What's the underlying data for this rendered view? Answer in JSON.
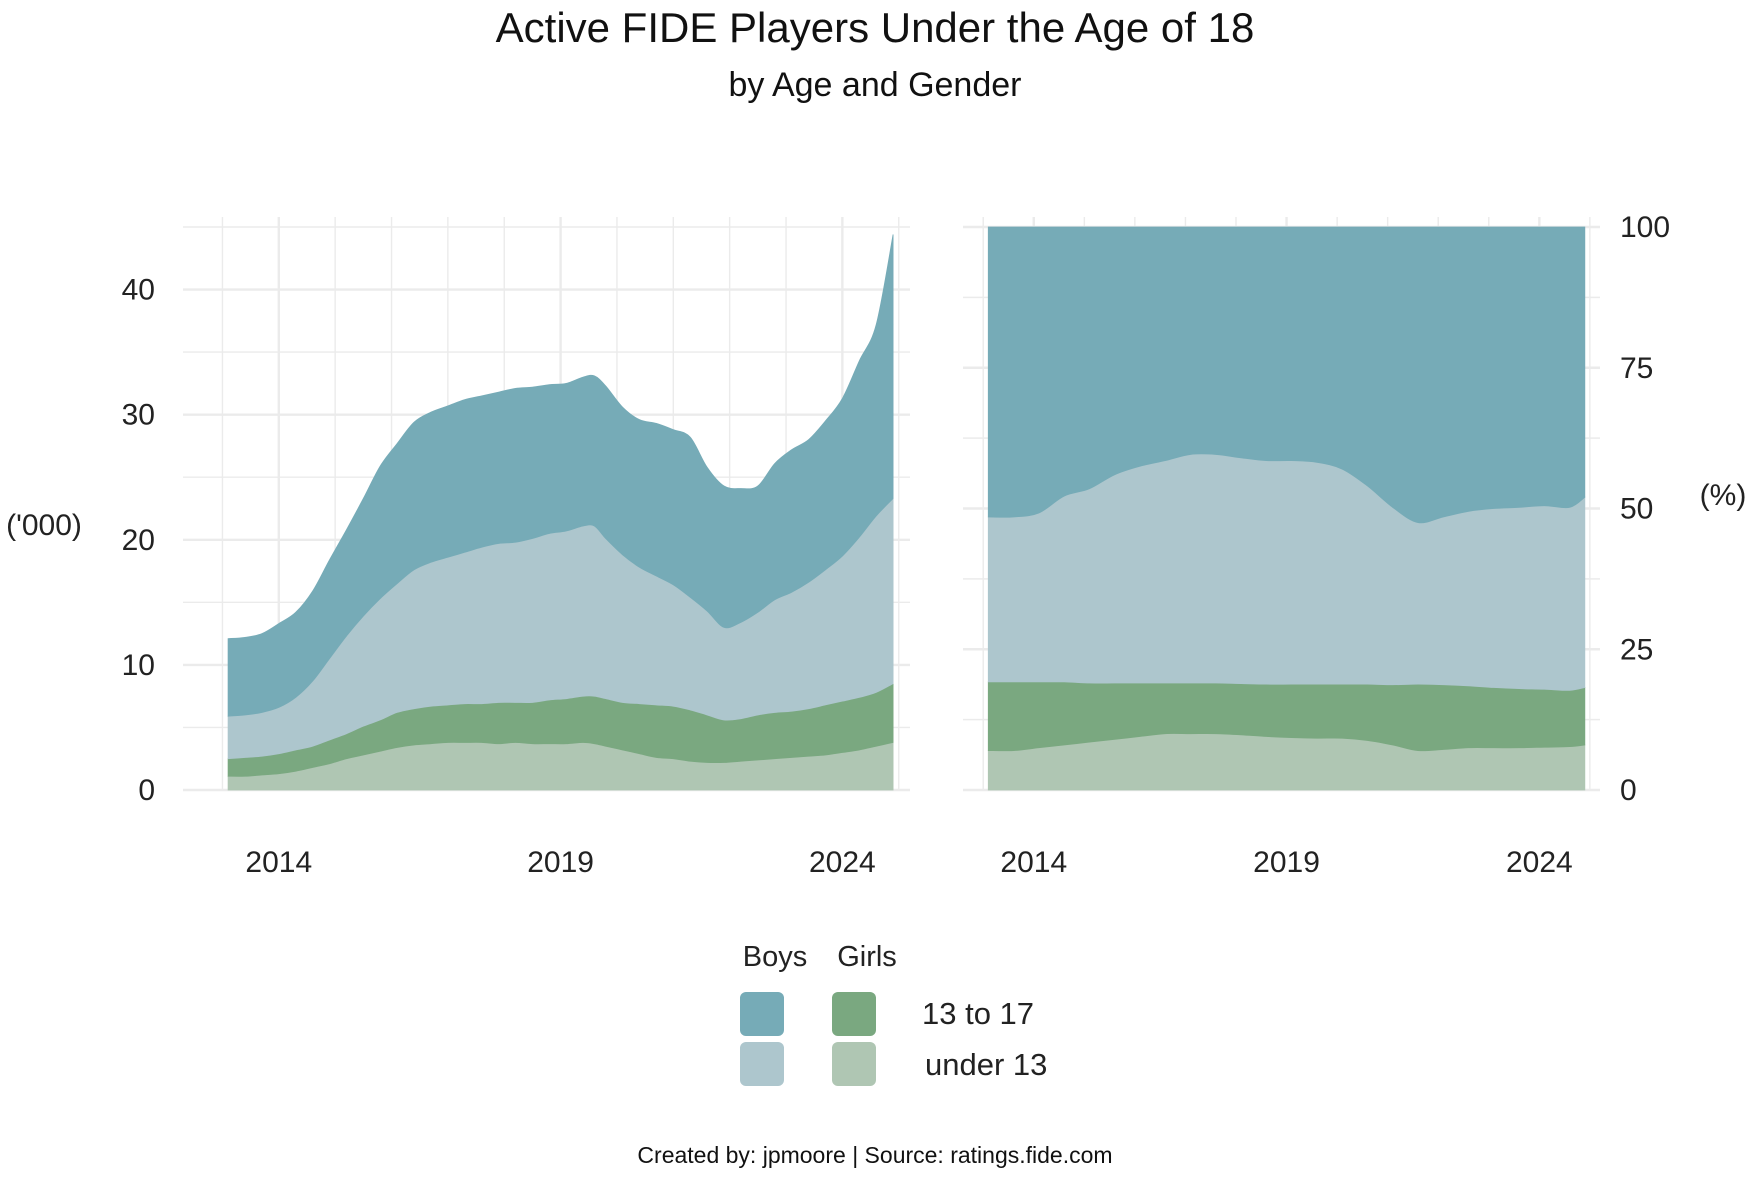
{
  "title": "Active FIDE Players Under the Age of 18",
  "subtitle": "by Age and Gender",
  "caption": "Created by: jpmoore | Source: ratings.fide.com",
  "colors": {
    "boys_13_17": "#76abb7",
    "boys_under13": "#adc6cd",
    "girls_13_17": "#7aa880",
    "girls_under13": "#afc6b3",
    "grid": "#ebebeb"
  },
  "legend": {
    "col_boys": "Boys",
    "col_girls": "Girls",
    "row_13_17": "13 to 17",
    "row_under13": "under 13"
  },
  "chart_data": [
    {
      "type": "area",
      "stacked": true,
      "ylabel": "('000)",
      "ylim": [
        0,
        45
      ],
      "y_ticks": [
        0,
        10,
        20,
        30,
        40
      ],
      "x_ticks": [
        2014,
        2019,
        2024
      ],
      "xlim": [
        2012.3,
        2025.2
      ],
      "grid": true,
      "x": [
        2013.1,
        2013.4,
        2013.7,
        2014,
        2014.3,
        2014.6,
        2014.9,
        2015.2,
        2015.5,
        2015.8,
        2016.1,
        2016.4,
        2016.7,
        2017,
        2017.3,
        2017.6,
        2017.9,
        2018.2,
        2018.5,
        2018.8,
        2019.1,
        2019.4,
        2019.6,
        2019.8,
        2020.1,
        2020.4,
        2020.7,
        2021,
        2021.3,
        2021.6,
        2021.9,
        2022.2,
        2022.5,
        2022.8,
        2023.1,
        2023.4,
        2023.7,
        2024,
        2024.3,
        2024.6,
        2024.9
      ],
      "series": [
        {
          "name": "Girls under 13",
          "values": [
            1.1,
            1.1,
            1.2,
            1.3,
            1.5,
            1.8,
            2.1,
            2.5,
            2.8,
            3.1,
            3.4,
            3.6,
            3.7,
            3.8,
            3.8,
            3.8,
            3.7,
            3.8,
            3.7,
            3.7,
            3.7,
            3.8,
            3.7,
            3.5,
            3.2,
            2.9,
            2.6,
            2.5,
            2.3,
            2.2,
            2.2,
            2.3,
            2.4,
            2.5,
            2.6,
            2.7,
            2.8,
            3.0,
            3.2,
            3.5,
            3.8
          ]
        },
        {
          "name": "Girls 13 to 17",
          "values": [
            1.4,
            1.5,
            1.5,
            1.6,
            1.7,
            1.7,
            1.9,
            2.0,
            2.3,
            2.5,
            2.8,
            2.9,
            3.0,
            3.0,
            3.1,
            3.1,
            3.3,
            3.2,
            3.3,
            3.5,
            3.6,
            3.7,
            3.8,
            3.8,
            3.8,
            4.0,
            4.2,
            4.2,
            4.1,
            3.8,
            3.4,
            3.4,
            3.6,
            3.7,
            3.7,
            3.8,
            4.0,
            4.1,
            4.2,
            4.3,
            4.7
          ]
        },
        {
          "name": "Boys under 13",
          "values": [
            3.4,
            3.4,
            3.5,
            3.7,
            4.2,
            5.2,
            6.5,
            7.8,
            8.8,
            9.7,
            10.3,
            11.1,
            11.5,
            11.8,
            12.1,
            12.5,
            12.7,
            12.8,
            13.1,
            13.3,
            13.4,
            13.6,
            13.6,
            12.8,
            11.8,
            10.9,
            10.3,
            9.7,
            9.0,
            8.3,
            7.4,
            7.7,
            8.2,
            9.0,
            9.5,
            10.1,
            10.8,
            11.6,
            12.8,
            14.1,
            14.8
          ]
        },
        {
          "name": "Boys 13 to 17",
          "values": [
            6.2,
            6.2,
            6.3,
            6.7,
            6.8,
            7.2,
            7.9,
            8.5,
            9.4,
            10.6,
            11.2,
            11.8,
            12.0,
            12.1,
            12.2,
            12.1,
            12.1,
            12.3,
            12.1,
            11.9,
            11.8,
            11.9,
            12.0,
            12.2,
            11.8,
            11.8,
            12.2,
            12.4,
            12.8,
            11.5,
            11.3,
            10.7,
            10.1,
            10.9,
            11.4,
            11.4,
            11.9,
            12.6,
            14.1,
            15.3,
            21.1
          ]
        }
      ]
    },
    {
      "type": "area",
      "stacked": true,
      "percent": true,
      "ylabel": "(%)",
      "ylim": [
        0,
        100
      ],
      "y_ticks": [
        0,
        25,
        50,
        75,
        100
      ],
      "x_ticks": [
        2014,
        2019,
        2024
      ],
      "xlim": [
        2012.6,
        2025.2
      ],
      "grid": true,
      "x": [
        2013.1,
        2013.6,
        2014.1,
        2014.6,
        2015.1,
        2015.6,
        2016.1,
        2016.6,
        2017.1,
        2017.6,
        2018.1,
        2018.6,
        2019.1,
        2019.6,
        2020.1,
        2020.6,
        2021.1,
        2021.6,
        2022.1,
        2022.6,
        2023.1,
        2023.6,
        2024.1,
        2024.6,
        2024.9
      ],
      "series": [
        {
          "name": "Girls under 13",
          "values": [
            7,
            7,
            7.5,
            8,
            8.5,
            9,
            9.5,
            10,
            10,
            10,
            9.8,
            9.5,
            9.3,
            9.2,
            9.2,
            8.8,
            8,
            7,
            7.2,
            7.5,
            7.5,
            7.5,
            7.6,
            7.7,
            8
          ]
        },
        {
          "name": "Girls 13 to 17",
          "values": [
            12.2,
            12.2,
            11.7,
            11.2,
            10.5,
            10,
            9.5,
            9,
            9,
            9,
            9.1,
            9.3,
            9.5,
            9.6,
            9.6,
            10,
            10.7,
            11.8,
            11.5,
            11,
            10.7,
            10.5,
            10.3,
            10,
            10.2
          ]
        },
        {
          "name": "Boys under 13",
          "values": [
            29.3,
            29.3,
            30,
            33,
            34.5,
            37,
            38.5,
            39.5,
            40.6,
            40.6,
            40.1,
            39.7,
            39.7,
            39.4,
            38.2,
            35.2,
            31.5,
            28.7,
            29.8,
            31,
            31.8,
            32.2,
            32.6,
            32.5,
            33.8
          ]
        },
        {
          "name": "Boys 13 to 17",
          "values": [
            51.5,
            51.5,
            50.8,
            47.8,
            46.5,
            44,
            42.5,
            41.5,
            40.4,
            40.4,
            41,
            41.5,
            41.5,
            41.8,
            43,
            46,
            49.8,
            52.5,
            51.5,
            50.5,
            50,
            49.8,
            49.5,
            49.8,
            48
          ]
        }
      ]
    }
  ]
}
